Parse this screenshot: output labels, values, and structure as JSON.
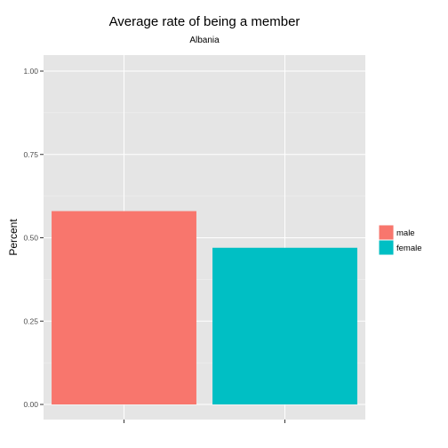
{
  "chart_data": {
    "type": "bar",
    "title": "Average rate of being a member",
    "subtitle": "Albania",
    "xlabel": "",
    "ylabel": "Percent",
    "categories": [
      "male",
      "female"
    ],
    "values": [
      0.58,
      0.47
    ],
    "ylim": [
      0,
      1
    ],
    "y_ticks": [
      0.0,
      0.25,
      0.5,
      0.75,
      1.0
    ],
    "y_tick_labels": [
      "0.00",
      "0.25",
      "0.50",
      "0.75",
      "1.00"
    ],
    "x_tick_labels": [
      "",
      ""
    ],
    "grid": true,
    "legend_position": "right",
    "legend": [
      {
        "label": "male",
        "color": "#F8766D"
      },
      {
        "label": "female",
        "color": "#00BFC4"
      }
    ],
    "colors": [
      "#F8766D",
      "#00BFC4"
    ],
    "panel_background": "#E5E5E5",
    "gridline_color": "#FFFFFF"
  }
}
